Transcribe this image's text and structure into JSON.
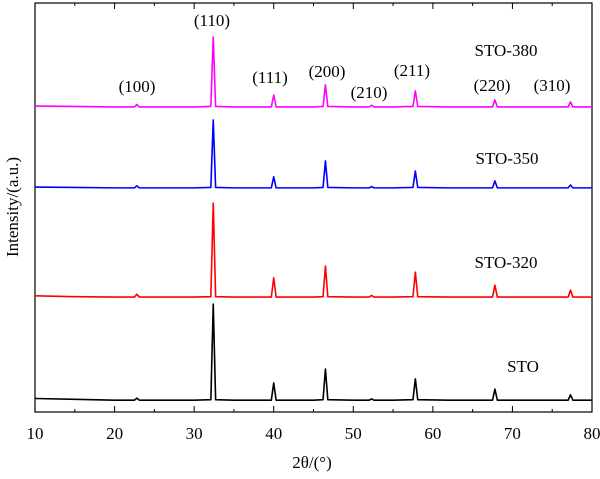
{
  "chart_data": {
    "type": "line",
    "x_label": "2θ/(°)",
    "y_label": "Intensity/(a.u.)",
    "xlim": [
      10,
      80
    ],
    "xticks": [
      10,
      20,
      30,
      40,
      50,
      60,
      70,
      80
    ],
    "ylim": [
      0,
      100
    ],
    "x": [
      10,
      15,
      20,
      22.5,
      22.8,
      23.1,
      30,
      32.1,
      32.4,
      32.7,
      35,
      39.7,
      40.0,
      40.3,
      45,
      46.2,
      46.5,
      46.8,
      50,
      52.0,
      52.3,
      52.6,
      55,
      57.5,
      57.8,
      58.1,
      62,
      67.5,
      67.8,
      68.1,
      72,
      77.0,
      77.3,
      77.6,
      80
    ],
    "series": [
      {
        "name": "STO-380",
        "color": "#ff00ff",
        "values": [
          74.8,
          74.7,
          74.6,
          74.6,
          75.2,
          74.6,
          74.6,
          74.7,
          91.7,
          74.7,
          74.6,
          74.6,
          77.5,
          74.6,
          74.6,
          74.7,
          80.0,
          74.7,
          74.6,
          74.6,
          75.0,
          74.6,
          74.6,
          74.7,
          78.5,
          74.7,
          74.6,
          74.6,
          76.3,
          74.6,
          74.6,
          74.6,
          75.8,
          74.6,
          74.6
        ]
      },
      {
        "name": "STO-350",
        "color": "#0000ff",
        "values": [
          55.0,
          54.9,
          54.8,
          54.8,
          55.3,
          54.8,
          54.8,
          54.9,
          71.4,
          54.9,
          54.8,
          54.8,
          57.5,
          54.8,
          54.8,
          54.9,
          61.4,
          54.9,
          54.8,
          54.8,
          55.1,
          54.8,
          54.8,
          54.9,
          58.9,
          54.9,
          54.8,
          54.8,
          56.5,
          54.8,
          54.8,
          54.8,
          55.5,
          54.8,
          54.8
        ]
      },
      {
        "name": "STO-320",
        "color": "#ff0000",
        "values": [
          28.4,
          28.2,
          28.1,
          28.1,
          28.8,
          28.1,
          28.1,
          28.2,
          51.1,
          28.2,
          28.1,
          28.1,
          32.8,
          28.1,
          28.1,
          28.2,
          35.7,
          28.2,
          28.1,
          28.1,
          28.5,
          28.1,
          28.1,
          28.2,
          34.2,
          28.2,
          28.1,
          28.1,
          31.0,
          28.1,
          28.1,
          28.1,
          29.8,
          28.1,
          28.1
        ]
      },
      {
        "name": "STO",
        "color": "#000000",
        "values": [
          3.3,
          3.1,
          2.9,
          2.9,
          3.4,
          2.9,
          2.9,
          3.0,
          26.4,
          3.0,
          2.9,
          2.9,
          7.1,
          2.9,
          2.9,
          3.0,
          10.5,
          3.0,
          2.9,
          2.9,
          3.2,
          2.9,
          2.9,
          3.0,
          8.1,
          3.0,
          2.9,
          2.9,
          5.6,
          2.9,
          2.9,
          2.9,
          4.2,
          2.9,
          2.9
        ]
      }
    ],
    "annotations": [
      "(100)",
      "(110)",
      "(111)",
      "(200)",
      "(210)",
      "(211)",
      "(220)",
      "(310)"
    ]
  }
}
